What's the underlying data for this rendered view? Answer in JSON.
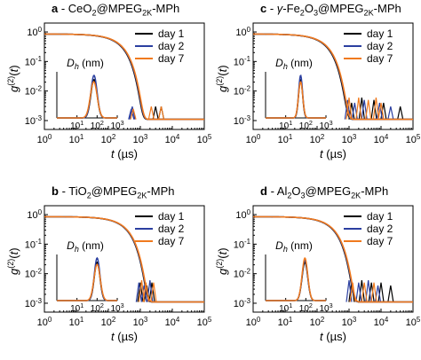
{
  "chart_data": [
    {
      "type": "line",
      "panel": "a",
      "title_parts": [
        [
          "a",
          "b"
        ],
        [
          " - CeO",
          "n"
        ],
        [
          "2",
          "sub"
        ],
        [
          "@MPEG",
          "n"
        ],
        [
          "2K",
          "sub"
        ],
        [
          "-MPh",
          "n"
        ]
      ],
      "xlabel": "t (µs)",
      "ylabel": "g(2)(t)",
      "xscale": "log",
      "yscale": "log",
      "xlim": [
        1,
        100000
      ],
      "ylim": [
        0.0005,
        2
      ],
      "xticks": [
        "10^0",
        "10^1",
        "10^2",
        "10^3",
        "10^4",
        "10^5"
      ],
      "yticks": [
        "10^0",
        "10^-1",
        "10^-2",
        "10^-3"
      ],
      "legend": "top-right",
      "series": [
        {
          "name": "day 1",
          "color": "#000000",
          "tau": 300,
          "noise": [
            [
              3000,
              0.003
            ],
            [
              4500,
              0.003
            ]
          ]
        },
        {
          "name": "day 2",
          "color": "#2b3fa0",
          "tau": 310,
          "noise": [
            [
              520,
              0.0025
            ],
            [
              560,
              0.003
            ]
          ]
        },
        {
          "name": "day 7",
          "color": "#f07a1e",
          "tau": 320,
          "noise": [
            [
              2200,
              0.003
            ],
            [
              4500,
              0.003
            ],
            [
              600,
              0.0025
            ]
          ]
        }
      ],
      "inset": {
        "label": "Dh (nm)",
        "xscale": "log",
        "xlim": [
          1,
          1000
        ],
        "xticks": [
          "10^1",
          "10^2",
          "10^3"
        ],
        "peaks": [
          {
            "series": "day 1",
            "center": 70,
            "width": 0.22,
            "height": 0.9
          },
          {
            "series": "day 2",
            "center": 70,
            "width": 0.22,
            "height": 1.0
          },
          {
            "series": "day 7",
            "center": 68,
            "width": 0.24,
            "height": 0.85
          }
        ]
      }
    },
    {
      "type": "line",
      "panel": "c",
      "title_parts": [
        [
          "c",
          "b"
        ],
        [
          " - ",
          "n"
        ],
        [
          "γ",
          "i"
        ],
        [
          "-Fe",
          "n"
        ],
        [
          "2",
          "sub"
        ],
        [
          "O",
          "n"
        ],
        [
          "3",
          "sub"
        ],
        [
          "@MPEG",
          "n"
        ],
        [
          "2K",
          "sub"
        ],
        [
          "-MPh",
          "n"
        ]
      ],
      "xlabel": "t (µs)",
      "ylabel": "g(2)(t)",
      "xscale": "log",
      "yscale": "log",
      "xlim": [
        1,
        100000
      ],
      "ylim": [
        0.0005,
        2
      ],
      "xticks": [
        "10^0",
        "10^1",
        "10^2",
        "10^3",
        "10^4",
        "10^5"
      ],
      "yticks": [
        "10^0",
        "10^-1",
        "10^-2",
        "10^-3"
      ],
      "legend": "top-right",
      "series": [
        {
          "name": "day 1",
          "color": "#000000",
          "tau": 230,
          "noise": [
            [
              1200,
              0.004
            ],
            [
              2500,
              0.006
            ],
            [
              6000,
              0.005
            ],
            [
              12000,
              0.004
            ],
            [
              40000,
              0.003
            ]
          ]
        },
        {
          "name": "day 2",
          "color": "#2b3fa0",
          "tau": 240,
          "noise": [
            [
              900,
              0.005
            ],
            [
              1500,
              0.004
            ],
            [
              3000,
              0.005
            ],
            [
              9000,
              0.004
            ],
            [
              20000,
              0.003
            ]
          ]
        },
        {
          "name": "day 7",
          "color": "#f07a1e",
          "tau": 245,
          "noise": [
            [
              1000,
              0.006
            ],
            [
              2000,
              0.006
            ],
            [
              4000,
              0.005
            ],
            [
              7000,
              0.006
            ],
            [
              10000,
              0.004
            ]
          ]
        }
      ],
      "inset": {
        "label": "Dh (nm)",
        "xscale": "log",
        "xlim": [
          1,
          1000
        ],
        "xticks": [
          "10^1",
          "10^2",
          "10^3"
        ],
        "peaks": [
          {
            "series": "day 1",
            "center": 55,
            "width": 0.14,
            "height": 0.9
          },
          {
            "series": "day 2",
            "center": 55,
            "width": 0.14,
            "height": 1.0
          },
          {
            "series": "day 7",
            "center": 55,
            "width": 0.15,
            "height": 0.85
          }
        ]
      }
    },
    {
      "type": "line",
      "panel": "b",
      "title_parts": [
        [
          "b",
          "b"
        ],
        [
          " - TiO",
          "n"
        ],
        [
          "2",
          "sub"
        ],
        [
          "@MPEG",
          "n"
        ],
        [
          "2K",
          "sub"
        ],
        [
          "-MPh",
          "n"
        ]
      ],
      "xlabel": "t (µs)",
      "ylabel": "g(2)(t)",
      "xscale": "log",
      "yscale": "log",
      "xlim": [
        1,
        100000
      ],
      "ylim": [
        0.0005,
        2
      ],
      "xticks": [
        "10^0",
        "10^1",
        "10^2",
        "10^3",
        "10^4",
        "10^5"
      ],
      "yticks": [
        "10^0",
        "10^-1",
        "10^-2",
        "10^-3"
      ],
      "legend": "top-right",
      "series": [
        {
          "name": "day 1",
          "color": "#000000",
          "tau": 420,
          "noise": [
            [
              1000,
              0.005
            ],
            [
              1600,
              0.004
            ],
            [
              2300,
              0.005
            ]
          ]
        },
        {
          "name": "day 2",
          "color": "#2b3fa0",
          "tau": 430,
          "noise": [
            [
              900,
              0.005
            ],
            [
              1300,
              0.004
            ],
            [
              2000,
              0.006
            ]
          ]
        },
        {
          "name": "day 7",
          "color": "#f07a1e",
          "tau": 440,
          "noise": [
            [
              1100,
              0.006
            ],
            [
              1500,
              0.005
            ],
            [
              2600,
              0.005
            ]
          ]
        }
      ],
      "inset": {
        "label": "Dh (nm)",
        "xscale": "log",
        "xlim": [
          1,
          1000
        ],
        "xticks": [
          "10^1",
          "10^2",
          "10^3"
        ],
        "peaks": [
          {
            "series": "day 1",
            "center": 100,
            "width": 0.2,
            "height": 0.9
          },
          {
            "series": "day 2",
            "center": 100,
            "width": 0.2,
            "height": 1.0
          },
          {
            "series": "day 7",
            "center": 100,
            "width": 0.22,
            "height": 0.85
          }
        ]
      }
    },
    {
      "type": "line",
      "panel": "d",
      "title_parts": [
        [
          "d",
          "b"
        ],
        [
          " - Al",
          "n"
        ],
        [
          "2",
          "sub"
        ],
        [
          "O",
          "n"
        ],
        [
          "3",
          "sub"
        ],
        [
          "@MPEG",
          "n"
        ],
        [
          "2K",
          "sub"
        ],
        [
          "-MPh",
          "n"
        ]
      ],
      "xlabel": "t (µs)",
      "ylabel": "g(2)(t)",
      "xscale": "log",
      "yscale": "log",
      "xlim": [
        1,
        100000
      ],
      "ylim": [
        0.0005,
        2
      ],
      "xticks": [
        "10^0",
        "10^1",
        "10^2",
        "10^3",
        "10^4",
        "10^5"
      ],
      "yticks": [
        "10^0",
        "10^-1",
        "10^-2",
        "10^-3"
      ],
      "legend": "top-right",
      "series": [
        {
          "name": "day 1",
          "color": "#000000",
          "tau": 360,
          "noise": [
            [
              1200,
              0.005
            ],
            [
              2500,
              0.006
            ],
            [
              5000,
              0.005
            ],
            [
              10000,
              0.005
            ],
            [
              20000,
              0.004
            ]
          ]
        },
        {
          "name": "day 2",
          "color": "#2b3fa0",
          "tau": 370,
          "noise": [
            [
              1000,
              0.006
            ],
            [
              2000,
              0.005
            ],
            [
              4000,
              0.006
            ],
            [
              8000,
              0.004
            ]
          ]
        },
        {
          "name": "day 7",
          "color": "#f07a1e",
          "tau": 380,
          "noise": [
            [
              1300,
              0.005
            ],
            [
              3000,
              0.005
            ],
            [
              6000,
              0.005
            ]
          ]
        }
      ],
      "inset": {
        "label": "Dh (nm)",
        "xscale": "log",
        "xlim": [
          1,
          1000
        ],
        "xticks": [
          "10^1",
          "10^2",
          "10^3"
        ],
        "peaks": [
          {
            "series": "day 1",
            "center": 90,
            "width": 0.2,
            "height": 0.9
          },
          {
            "series": "day 2",
            "center": 90,
            "width": 0.2,
            "height": 0.95
          },
          {
            "series": "day 7",
            "center": 90,
            "width": 0.2,
            "height": 1.0
          }
        ]
      }
    }
  ]
}
